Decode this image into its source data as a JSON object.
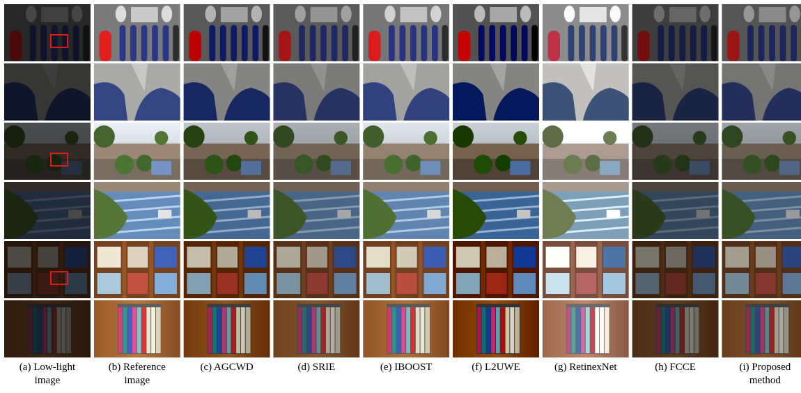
{
  "captions": [
    [
      "(a) Low-light",
      "image"
    ],
    [
      "(b) Reference",
      "image"
    ],
    [
      "(c) AGCWD"
    ],
    [
      "(d) SRIE"
    ],
    [
      "(e) IBOOST"
    ],
    [
      "(f) L2UWE"
    ],
    [
      "(g) RetinexNet"
    ],
    [
      "(h) FCCE"
    ],
    [
      "(i) Proposed",
      "method"
    ]
  ]
}
